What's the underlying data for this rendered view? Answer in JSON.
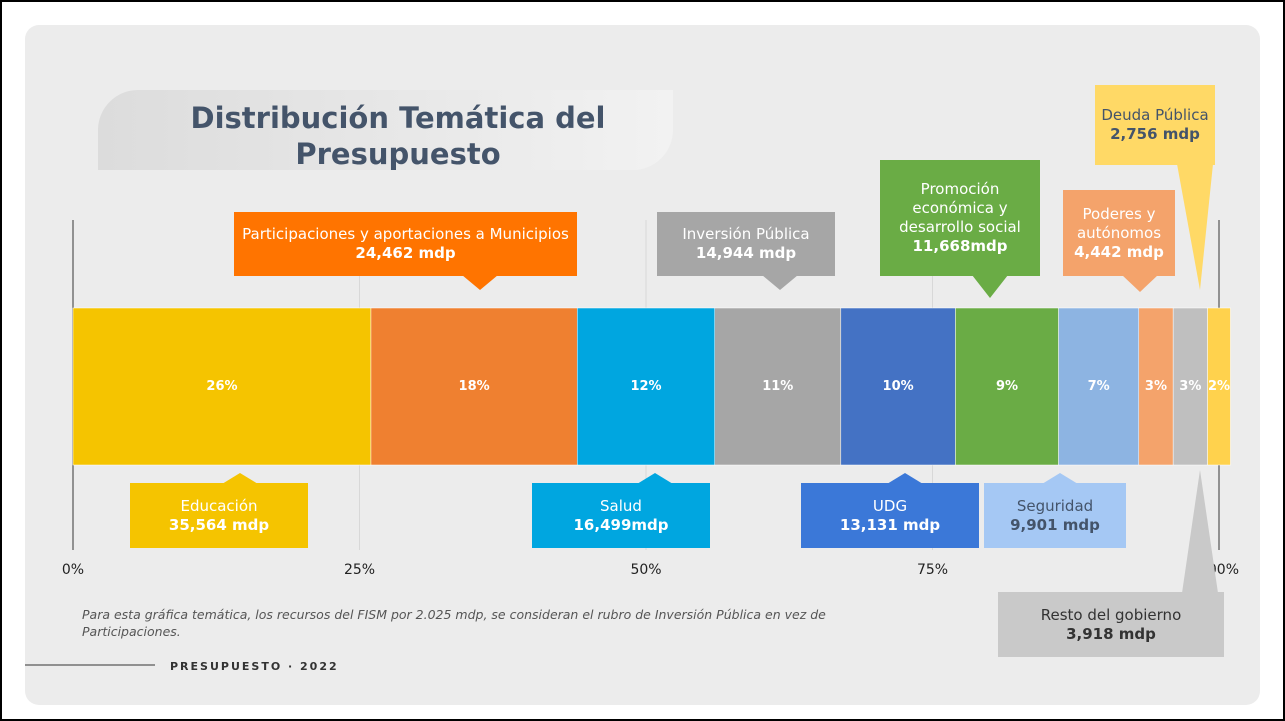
{
  "chart_data": {
    "type": "stacked-bar",
    "title": "Distribución Temática del Presupuesto",
    "xlim": [
      0,
      100
    ],
    "xticks": [
      {
        "value": 0,
        "label": "0%"
      },
      {
        "value": 25,
        "label": "25%"
      },
      {
        "value": 50,
        "label": "50%"
      },
      {
        "value": 75,
        "label": "75%"
      },
      {
        "value": 100,
        "label": "100%"
      }
    ],
    "grid": true,
    "series": [
      {
        "name": "Educación",
        "color": "#f5c400",
        "values": [
          26
        ],
        "value_labels": [
          "26%"
        ],
        "amount": "35,564 mdp"
      },
      {
        "name": "Participaciones y aportaciones a Municipios",
        "color": "#ef8030",
        "values": [
          18
        ],
        "value_labels": [
          "18%"
        ],
        "amount": "24,462 mdp"
      },
      {
        "name": "Salud",
        "color": "#00a6e0",
        "values": [
          12
        ],
        "value_labels": [
          "12%"
        ],
        "amount": "16,499mdp"
      },
      {
        "name": "Inversión Pública",
        "color": "#a6a6a6",
        "values": [
          11
        ],
        "value_labels": [
          "11%"
        ],
        "amount": "14,944 mdp"
      },
      {
        "name": "UDG",
        "color": "#4472c4",
        "values": [
          10
        ],
        "value_labels": [
          "10%"
        ],
        "amount": "13,131 mdp"
      },
      {
        "name": "Promoción económica y desarrollo social",
        "color": "#6aac45",
        "values": [
          9
        ],
        "value_labels": [
          "9%"
        ],
        "amount": "11,668mdp"
      },
      {
        "name": "Seguridad",
        "color": "#8db4e2",
        "values": [
          7
        ],
        "value_labels": [
          "7%"
        ],
        "amount": "9,901 mdp"
      },
      {
        "name": "Poderes y autónomos",
        "color": "#f4a36b",
        "values": [
          3
        ],
        "value_labels": [
          "3%"
        ],
        "amount": "4,442 mdp"
      },
      {
        "name": "Resto del gobierno",
        "color": "#bfbfbf",
        "values": [
          3
        ],
        "value_labels": [
          "3%"
        ],
        "amount": "3,918 mdp"
      },
      {
        "name": "Deuda Pública",
        "color": "#ffd24d",
        "values": [
          2
        ],
        "value_labels": [
          "2%"
        ],
        "amount": "2,756 mdp"
      }
    ],
    "note": "Para esta gráfica temática, los recursos del  FISM  por 2.025 mdp, se consideran el rubro de Inversión Pública en vez de Participaciones.",
    "footer": "PRESUPUESTO · 2022"
  }
}
